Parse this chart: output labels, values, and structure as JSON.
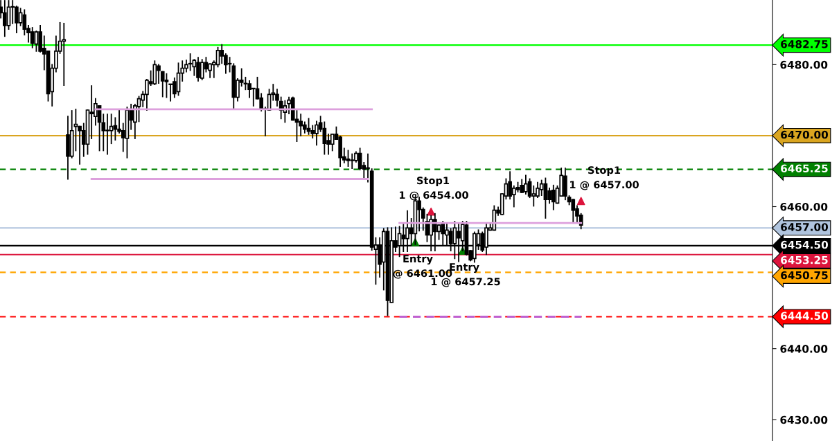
{
  "chart_data": {
    "type": "candlestick",
    "categories": [
      null,
      null,
      null,
      null,
      null,
      null,
      null,
      null,
      null,
      null,
      null,
      null,
      null,
      null,
      null,
      null,
      null,
      null,
      null,
      null,
      null,
      null,
      null,
      null,
      null,
      null,
      null,
      null,
      null,
      null,
      null,
      null,
      null,
      null,
      null,
      null,
      null,
      null,
      null,
      null,
      null,
      null,
      null,
      null,
      null,
      null,
      null,
      null,
      null,
      null,
      null,
      null,
      null,
      null,
      null,
      null,
      null,
      null,
      null,
      null,
      null,
      null,
      null,
      null,
      null,
      null,
      null,
      null,
      null,
      null,
      null,
      null,
      null,
      null,
      null,
      null,
      null,
      null,
      null,
      null,
      null,
      null,
      null,
      null,
      null,
      null,
      null,
      null,
      null,
      null,
      null,
      null,
      null,
      null,
      null,
      null,
      null,
      null,
      null,
      null,
      null,
      null,
      null,
      null,
      null,
      null,
      null,
      null,
      null,
      null,
      null,
      null,
      null,
      null,
      null,
      null,
      null,
      null,
      null,
      null,
      null,
      null,
      null,
      null,
      null,
      null,
      null,
      null,
      null,
      null,
      null,
      null,
      null,
      null,
      null,
      null,
      null,
      null,
      null,
      null,
      null,
      null,
      null,
      null,
      null,
      null,
      null,
      null,
      null,
      null,
      null,
      null,
      null,
      null,
      null,
      null,
      null,
      null,
      null,
      null,
      null,
      null,
      null,
      null,
      null,
      null,
      null,
      null,
      null,
      null,
      null,
      null,
      null,
      null,
      null,
      null,
      null,
      null,
      null,
      null,
      null,
      null,
      null,
      null,
      null,
      null,
      null,
      null,
      null,
      null,
      null,
      null,
      null,
      null,
      null,
      null
    ],
    "ohlc": [
      [
        6488.1,
        6489.0,
        6486.6,
        6487.3
      ],
      [
        6487.3,
        6489.0,
        6484.0,
        6485.5
      ],
      [
        6485.5,
        6489.0,
        6485.0,
        6488.1
      ],
      [
        6488.1,
        6489.0,
        6485.8,
        6488.1
      ],
      [
        6488.1,
        6488.2,
        6484.5,
        6485.9
      ],
      [
        6485.9,
        6487.9,
        6485.5,
        6487.3
      ],
      [
        6487.0,
        6487.7,
        6484.2,
        6485.0
      ],
      [
        6485.1,
        6485.5,
        6483.2,
        6484.5
      ],
      [
        6484.6,
        6485.2,
        6482.4,
        6483.0
      ],
      [
        6482.9,
        6484.7,
        6481.9,
        6484.6
      ],
      [
        6484.6,
        6485.5,
        6481.8,
        6481.9
      ],
      [
        6482.3,
        6484.0,
        6479.3,
        6481.5
      ],
      [
        6481.9,
        6481.9,
        6474.9,
        6475.9
      ],
      [
        6476.2,
        6480.0,
        6474.2,
        6479.5
      ],
      [
        6479.5,
        6484.0,
        6479.0,
        6481.9
      ],
      [
        6481.9,
        6485.9,
        6481.6,
        6483.3
      ],
      [
        6483.3,
        6485.8,
        6477.1,
        6483.5
      ],
      [
        6470.1,
        6472.7,
        6463.9,
        6467.1
      ],
      [
        6467.1,
        6473.5,
        6466.9,
        6470.7
      ],
      [
        6471.3,
        6473.7,
        6467.9,
        6471.6
      ],
      [
        6471.3,
        6471.3,
        6466.0,
        6470.7
      ],
      [
        6470.7,
        6471.7,
        6467.1,
        6468.8
      ],
      [
        6468.8,
        6473.6,
        6467.4,
        6473.6
      ],
      [
        6473.3,
        6477.0,
        6469.6,
        6473.1
      ],
      [
        6472.7,
        6475.2,
        6471.5,
        6474.5
      ],
      [
        6474.2,
        6474.2,
        6467.9,
        6471.9
      ],
      [
        6471.8,
        6473.0,
        6467.9,
        6470.7
      ],
      [
        6470.7,
        6473.0,
        6467.4,
        6470.7
      ],
      [
        6470.7,
        6473.0,
        6468.9,
        6471.3
      ],
      [
        6471.4,
        6472.5,
        6469.4,
        6470.9
      ],
      [
        6470.9,
        6473.7,
        6470.4,
        6470.6
      ],
      [
        6470.7,
        6471.7,
        6467.8,
        6469.7
      ],
      [
        6469.6,
        6474.0,
        6466.9,
        6473.6
      ],
      [
        6473.6,
        6474.4,
        6470.9,
        6472.2
      ],
      [
        6471.9,
        6474.4,
        6469.6,
        6474.2
      ],
      [
        6474.1,
        6475.5,
        6472.0,
        6475.2
      ],
      [
        6475.0,
        6476.2,
        6474.1,
        6475.8
      ],
      [
        6475.8,
        6477.9,
        6473.6,
        6477.8
      ],
      [
        6477.6,
        6479.1,
        6477.1,
        6477.3
      ],
      [
        6477.3,
        6480.5,
        6477.2,
        6480.0
      ],
      [
        6479.8,
        6480.0,
        6477.4,
        6479.2
      ],
      [
        6479.0,
        6479.0,
        6475.5,
        6477.7
      ],
      [
        6477.8,
        6478.7,
        6475.4,
        6477.6
      ],
      [
        6477.2,
        6477.2,
        6474.9,
        6477.2
      ],
      [
        6477.6,
        6478.1,
        6475.4,
        6475.9
      ],
      [
        6476.2,
        6480.2,
        6475.7,
        6478.8
      ],
      [
        6478.8,
        6480.5,
        6477.7,
        6479.5
      ],
      [
        6479.5,
        6480.6,
        6479.0,
        6480.0
      ],
      [
        6480.1,
        6481.5,
        6479.2,
        6480.1
      ],
      [
        6479.7,
        6480.7,
        6478.5,
        6480.6
      ],
      [
        6480.3,
        6481.0,
        6477.7,
        6478.2
      ],
      [
        6478.1,
        6480.7,
        6477.9,
        6480.3
      ],
      [
        6480.3,
        6481.0,
        6479.0,
        6479.4
      ],
      [
        6479.2,
        6480.1,
        6478.2,
        6480.1
      ],
      [
        6480.0,
        6480.5,
        6478.2,
        6480.3
      ],
      [
        6480.0,
        6482.4,
        6479.7,
        6482.0
      ],
      [
        6482.0,
        6482.8,
        6480.2,
        6481.2
      ],
      [
        6481.3,
        6481.5,
        6478.8,
        6480.0
      ],
      [
        6480.1,
        6481.0,
        6479.0,
        6480.1
      ],
      [
        6479.8,
        6480.1,
        6473.8,
        6475.4
      ],
      [
        6475.4,
        6478.0,
        6474.9,
        6477.8
      ],
      [
        6477.8,
        6479.4,
        6477.0,
        6477.5
      ],
      [
        6477.3,
        6478.2,
        6476.5,
        6477.3
      ],
      [
        6477.3,
        6477.7,
        6475.4,
        6476.5
      ],
      [
        6476.6,
        6476.6,
        6474.2,
        6476.6
      ],
      [
        6476.6,
        6478.2,
        6475.2,
        6475.2
      ],
      [
        6475.3,
        6475.9,
        6473.5,
        6473.8
      ],
      [
        6473.7,
        6474.0,
        6470.0,
        6473.7
      ],
      [
        6473.6,
        6476.5,
        6473.6,
        6475.8
      ],
      [
        6475.8,
        6477.2,
        6475.0,
        6476.0
      ],
      [
        6475.8,
        6476.5,
        6474.2,
        6475.0
      ],
      [
        6474.8,
        6475.4,
        6472.4,
        6473.6
      ],
      [
        6473.3,
        6474.9,
        6471.9,
        6474.2
      ],
      [
        6474.5,
        6475.4,
        6473.1,
        6475.0
      ],
      [
        6475.3,
        6475.4,
        6472.2,
        6472.2
      ],
      [
        6472.3,
        6473.5,
        6469.2,
        6471.9
      ],
      [
        6472.0,
        6473.0,
        6470.0,
        6471.4
      ],
      [
        6471.5,
        6471.9,
        6470.4,
        6470.9
      ],
      [
        6471.0,
        6472.4,
        6470.2,
        6470.6
      ],
      [
        6470.7,
        6471.4,
        6469.7,
        6470.3
      ],
      [
        6470.3,
        6472.0,
        6468.7,
        6471.5
      ],
      [
        6471.8,
        6472.7,
        6470.6,
        6470.9
      ],
      [
        6471.0,
        6471.9,
        6467.4,
        6468.9
      ],
      [
        6469.3,
        6470.2,
        6467.4,
        6468.8
      ],
      [
        6468.8,
        6470.2,
        6467.9,
        6470.2
      ],
      [
        6470.2,
        6471.2,
        6469.5,
        6469.5
      ],
      [
        6469.8,
        6469.9,
        6465.7,
        6466.9
      ],
      [
        6467.0,
        6468.2,
        6466.2,
        6466.6
      ],
      [
        6466.7,
        6467.9,
        6465.7,
        6466.5
      ],
      [
        6466.5,
        6467.4,
        6465.4,
        6466.5
      ],
      [
        6466.5,
        6467.7,
        6466.3,
        6467.5
      ],
      [
        6467.5,
        6468.2,
        6465.2,
        6465.4
      ],
      [
        6465.8,
        6466.2,
        6464.0,
        6465.3
      ],
      [
        6465.4,
        6467.4,
        6463.5,
        6465.4
      ],
      [
        6465.0,
        6465.3,
        6453.9,
        6454.3
      ],
      [
        6454.0,
        6455.6,
        6449.1,
        6454.6
      ],
      [
        6454.6,
        6455.6,
        6450.1,
        6451.9
      ],
      [
        6452.2,
        6456.9,
        6448.3,
        6456.5
      ],
      [
        6456.5,
        6457.0,
        6444.7,
        6446.8
      ],
      [
        6446.5,
        6457.0,
        6446.5,
        6455.2
      ],
      [
        6455.2,
        6457.1,
        6453.7,
        6454.3
      ],
      [
        6454.5,
        6457.2,
        6453.0,
        6456.2
      ],
      [
        6456.0,
        6457.5,
        6453.7,
        6455.5
      ],
      [
        6455.5,
        6459.4,
        6453.7,
        6457.0
      ],
      [
        6457.0,
        6458.3,
        6454.6,
        6456.2
      ],
      [
        6456.2,
        6461.3,
        6454.7,
        6460.8
      ],
      [
        6460.8,
        6461.3,
        6456.6,
        6459.6
      ],
      [
        6459.6,
        6459.8,
        6456.7,
        6458.4
      ],
      [
        6457.9,
        6458.9,
        6455.1,
        6456.0
      ],
      [
        6456.0,
        6458.7,
        6453.8,
        6458.2
      ],
      [
        6458.2,
        6459.0,
        6453.8,
        6456.5
      ],
      [
        6456.5,
        6457.4,
        6455.4,
        6457.4
      ],
      [
        6457.7,
        6457.9,
        6454.6,
        6456.2
      ],
      [
        6456.0,
        6457.6,
        6454.5,
        6456.7
      ],
      [
        6456.5,
        6456.9,
        6453.8,
        6454.8
      ],
      [
        6454.8,
        6457.9,
        6452.7,
        6457.0
      ],
      [
        6456.5,
        6457.6,
        6452.3,
        6455.6
      ],
      [
        6455.2,
        6457.9,
        6453.8,
        6457.5
      ],
      [
        6457.4,
        6457.9,
        6453.2,
        6453.3
      ],
      [
        6453.8,
        6453.8,
        6452.4,
        6452.5
      ],
      [
        6452.7,
        6456.4,
        6452.2,
        6456.2
      ],
      [
        6454.7,
        6456.7,
        6454.0,
        6456.2
      ],
      [
        6456.2,
        6456.4,
        6453.7,
        6453.9
      ],
      [
        6454.3,
        6457.6,
        6453.3,
        6457.0
      ],
      [
        6456.7,
        6457.6,
        6456.7,
        6457.0
      ],
      [
        6456.7,
        6460.1,
        6456.7,
        6459.5
      ],
      [
        6459.5,
        6459.9,
        6458.8,
        6459.1
      ],
      [
        6458.9,
        6461.8,
        6458.9,
        6461.8
      ],
      [
        6461.5,
        6463.9,
        6461.1,
        6463.2
      ],
      [
        6463.5,
        6464.9,
        6461.1,
        6461.5
      ],
      [
        6461.7,
        6462.9,
        6460.0,
        6462.6
      ],
      [
        6462.7,
        6463.4,
        6462.1,
        6462.4
      ],
      [
        6463.0,
        6463.8,
        6462.0,
        6462.0
      ],
      [
        6462.1,
        6464.4,
        6461.8,
        6463.2
      ],
      [
        6463.5,
        6463.9,
        6461.3,
        6461.5
      ],
      [
        6461.5,
        6462.9,
        6460.1,
        6461.8
      ],
      [
        6461.5,
        6463.4,
        6461.3,
        6462.6
      ],
      [
        6462.4,
        6463.7,
        6461.6,
        6463.2
      ],
      [
        6463.2,
        6464.0,
        6458.4,
        6461.0
      ],
      [
        6462.2,
        6462.6,
        6460.5,
        6461.0
      ],
      [
        6462.3,
        6463.0,
        6459.6,
        6460.7
      ],
      [
        6460.5,
        6462.9,
        6460.5,
        6462.6
      ],
      [
        6461.5,
        6465.4,
        6461.5,
        6464.4
      ],
      [
        6464.3,
        6465.4,
        6461.0,
        6461.5
      ],
      [
        6461.3,
        6461.5,
        6460.3,
        6460.7
      ],
      [
        6461.0,
        6461.0,
        6457.9,
        6459.5
      ],
      [
        6459.7,
        6460.1,
        6457.9,
        6458.7
      ],
      [
        6458.8,
        6459.0,
        6456.9,
        6457.4
      ],
      null,
      null,
      null,
      null,
      null,
      null,
      null,
      null,
      null,
      null,
      null,
      null,
      null,
      null,
      null,
      null,
      null,
      null,
      null,
      null,
      null,
      null,
      null,
      null,
      null,
      null,
      null,
      null,
      null,
      null,
      null,
      null,
      null,
      null,
      null,
      null,
      null,
      null,
      null,
      null,
      null,
      null,
      null,
      null,
      null,
      null,
      null,
      null
    ],
    "series": [
      {
        "type": "line",
        "color": "#dda0dd",
        "line_style": "solid",
        "values": [
          null,
          null,
          null,
          null,
          null,
          null,
          null,
          null,
          null,
          null,
          null,
          null,
          null,
          null,
          null,
          null,
          null,
          null,
          null,
          null,
          null,
          null,
          null,
          null,
          6473.7,
          6473.7,
          6473.7,
          6473.7,
          6473.7,
          6473.7,
          6473.7,
          6473.7,
          6473.7,
          6473.7,
          6473.7,
          6473.7,
          6473.7,
          6473.7,
          6473.7,
          6473.7,
          6473.7,
          6473.7,
          6473.7,
          6473.7,
          6473.7,
          6473.7,
          6473.7,
          6473.7,
          6473.7,
          6473.7,
          6473.7,
          6473.7,
          6473.7,
          6473.7,
          6473.7,
          6473.7,
          6473.7,
          6473.7,
          6473.7,
          6473.7,
          6473.7,
          6473.7,
          6473.7,
          6473.7,
          6473.7,
          6473.7,
          6473.7,
          6473.7,
          6473.7,
          6473.7,
          6473.7,
          6473.7,
          6473.7,
          6473.7,
          6473.7,
          6473.7,
          6473.7,
          6473.7,
          6473.7,
          6473.7,
          6473.7,
          6473.7,
          6473.7,
          6473.7,
          6473.7,
          6473.7,
          6473.7,
          6473.7,
          6473.7,
          6473.7,
          6473.7,
          6473.7,
          6473.7,
          6473.7,
          6473.7,
          null,
          null,
          null,
          null,
          null,
          null,
          null,
          null,
          null,
          null,
          null,
          null,
          null,
          null,
          null,
          null,
          null,
          null,
          null,
          null,
          null,
          null,
          null,
          null,
          null,
          null,
          null,
          null,
          null,
          null,
          null,
          null,
          null,
          null,
          null,
          null,
          null,
          null,
          null,
          null,
          null,
          null,
          null,
          null,
          null,
          null,
          null,
          null,
          null,
          null,
          null,
          null,
          null,
          null,
          null,
          null,
          null,
          null,
          null,
          null,
          null,
          null,
          null,
          null,
          null,
          null,
          null,
          null,
          null,
          null,
          null,
          null,
          null,
          null,
          null,
          null,
          null,
          null,
          null,
          null,
          null,
          null,
          null,
          null,
          null,
          null,
          null,
          null,
          null,
          null,
          null,
          null,
          null,
          null,
          null,
          null,
          null,
          null,
          null,
          null,
          null
        ]
      },
      {
        "type": "line",
        "color": "#dda0dd",
        "line_style": "solid",
        "values": [
          null,
          null,
          null,
          null,
          null,
          null,
          null,
          null,
          null,
          null,
          null,
          null,
          null,
          null,
          null,
          null,
          null,
          null,
          null,
          null,
          null,
          null,
          null,
          6463.9,
          6463.9,
          6463.9,
          6463.9,
          6463.9,
          6463.9,
          6463.9,
          6463.9,
          6463.9,
          6463.9,
          6463.9,
          6463.9,
          6463.9,
          6463.9,
          6463.9,
          6463.9,
          6463.9,
          6463.9,
          6463.9,
          6463.9,
          6463.9,
          6463.9,
          6463.9,
          6463.9,
          6463.9,
          6463.9,
          6463.9,
          6463.9,
          6463.9,
          6463.9,
          6463.9,
          6463.9,
          6463.9,
          6463.9,
          6463.9,
          6463.9,
          6463.9,
          6463.9,
          6463.9,
          6463.9,
          6463.9,
          6463.9,
          6463.9,
          6463.9,
          6463.9,
          6463.9,
          6463.9,
          6463.9,
          6463.9,
          6463.9,
          6463.9,
          6463.9,
          6463.9,
          6463.9,
          6463.9,
          6463.9,
          6463.9,
          6463.9,
          6463.9,
          6463.9,
          6463.9,
          6463.9,
          6463.9,
          6463.9,
          6463.9,
          6463.9,
          6463.9,
          6463.9,
          6463.9,
          6463.9,
          6463.9,
          null,
          null,
          null,
          null,
          null,
          null,
          null,
          null,
          null,
          null,
          null,
          null,
          null,
          null,
          null,
          null,
          null,
          null,
          null,
          null,
          null,
          null,
          null,
          null,
          null,
          null,
          null,
          null,
          null,
          null,
          null,
          null,
          null,
          null,
          null,
          null,
          null,
          null,
          null,
          null,
          null,
          null,
          null,
          null,
          null,
          null,
          null,
          null,
          null,
          null,
          null,
          null,
          null,
          null,
          null,
          null,
          null,
          null,
          null,
          null,
          null,
          null,
          null,
          null,
          null,
          null,
          null,
          null,
          null,
          null,
          null,
          null,
          null,
          null,
          null,
          null,
          null,
          null,
          null,
          null,
          null,
          null,
          null,
          null,
          null,
          null,
          null,
          null,
          null,
          null,
          null,
          null,
          null,
          null,
          null,
          null,
          null,
          null,
          null,
          null,
          null,
          null
        ]
      },
      {
        "type": "line",
        "color": "#dda0dd",
        "line_style": "solid",
        "values": [
          null,
          null,
          null,
          null,
          null,
          null,
          null,
          null,
          null,
          null,
          null,
          null,
          null,
          null,
          null,
          null,
          null,
          null,
          null,
          null,
          null,
          null,
          null,
          null,
          null,
          null,
          null,
          null,
          null,
          null,
          null,
          null,
          null,
          null,
          null,
          null,
          null,
          null,
          null,
          null,
          null,
          null,
          null,
          null,
          null,
          null,
          null,
          null,
          null,
          null,
          null,
          null,
          null,
          null,
          null,
          null,
          null,
          null,
          null,
          null,
          null,
          null,
          null,
          null,
          null,
          null,
          null,
          null,
          null,
          null,
          null,
          null,
          null,
          null,
          null,
          null,
          null,
          null,
          null,
          null,
          null,
          null,
          null,
          null,
          null,
          null,
          null,
          null,
          null,
          null,
          null,
          null,
          null,
          null,
          null,
          null,
          null,
          null,
          null,
          null,
          null,
          6457.7,
          6457.7,
          6457.7,
          6457.7,
          6457.7,
          6457.7,
          6457.7,
          6457.7,
          6457.7,
          6457.7,
          6457.7,
          6457.7,
          6457.7,
          6457.7,
          6457.7,
          6457.7,
          6457.7,
          6457.7,
          6457.7,
          6457.7,
          6457.7,
          6457.7,
          6457.7,
          6457.7,
          6457.7,
          6457.7,
          6457.7,
          6457.7,
          6457.7,
          6457.7,
          6457.7,
          6457.7,
          6457.7,
          6457.7,
          6457.7,
          6457.7,
          6457.7,
          6457.7,
          6457.7,
          6457.7,
          6457.7,
          6457.7,
          6457.7,
          6457.7,
          6457.7,
          6457.7,
          6457.7,
          null,
          null,
          null,
          null,
          null,
          null,
          null,
          null,
          null,
          null,
          null,
          null,
          null,
          null,
          null,
          null,
          null,
          null,
          null,
          null,
          null,
          null,
          null,
          null,
          null,
          null,
          null,
          null,
          null,
          null,
          null,
          null,
          null,
          null,
          null,
          null,
          null,
          null,
          null,
          null,
          null,
          null,
          null,
          null,
          null,
          null,
          null,
          null
        ]
      },
      {
        "type": "line",
        "color": "#c060d0",
        "line_style": "dashed",
        "values": [
          null,
          null,
          null,
          null,
          null,
          null,
          null,
          null,
          null,
          null,
          null,
          null,
          null,
          null,
          null,
          null,
          null,
          null,
          null,
          null,
          null,
          null,
          null,
          null,
          null,
          null,
          null,
          null,
          null,
          null,
          null,
          null,
          null,
          null,
          null,
          null,
          null,
          null,
          null,
          null,
          null,
          null,
          null,
          null,
          null,
          null,
          null,
          null,
          null,
          null,
          null,
          null,
          null,
          null,
          null,
          null,
          null,
          null,
          null,
          null,
          null,
          null,
          null,
          null,
          null,
          null,
          null,
          null,
          null,
          null,
          null,
          null,
          null,
          null,
          null,
          null,
          null,
          null,
          null,
          null,
          null,
          null,
          null,
          null,
          null,
          null,
          null,
          null,
          null,
          null,
          null,
          null,
          null,
          null,
          null,
          null,
          null,
          null,
          null,
          null,
          null,
          6444.5,
          6444.5,
          6444.5,
          6444.5,
          6444.5,
          6444.5,
          6444.5,
          6444.5,
          6444.5,
          6444.5,
          6444.5,
          6444.5,
          6444.5,
          6444.5,
          6444.5,
          6444.5,
          6444.5,
          6444.5,
          6444.5,
          6444.5,
          6444.5,
          6444.5,
          6444.5,
          6444.5,
          6444.5,
          6444.5,
          6444.5,
          6444.5,
          6444.5,
          6444.5,
          6444.5,
          6444.5,
          6444.5,
          6444.5,
          6444.5,
          6444.5,
          6444.5,
          6444.5,
          6444.5,
          6444.5,
          6444.5,
          6444.5,
          6444.5,
          6444.5,
          6444.5,
          6444.5,
          6444.5,
          null,
          null,
          null,
          null,
          null,
          null,
          null,
          null,
          null,
          null,
          null,
          null,
          null,
          null,
          null,
          null,
          null,
          null,
          null,
          null,
          null,
          null,
          null,
          null,
          null,
          null,
          null,
          null,
          null,
          null,
          null,
          null,
          null,
          null,
          null,
          null,
          null,
          null,
          null,
          null,
          null,
          null,
          null,
          null,
          null,
          null,
          null,
          null
        ]
      },
      {
        "type": "scatter",
        "color": "#008000",
        "marker": "triangle",
        "values": [
          null,
          null,
          null,
          null,
          null,
          null,
          null,
          null,
          null,
          null,
          null,
          null,
          null,
          null,
          null,
          null,
          null,
          null,
          null,
          null,
          null,
          null,
          null,
          null,
          null,
          null,
          null,
          null,
          null,
          null,
          null,
          null,
          null,
          null,
          null,
          null,
          null,
          null,
          null,
          null,
          null,
          null,
          null,
          null,
          null,
          null,
          null,
          null,
          null,
          null,
          null,
          null,
          null,
          null,
          null,
          null,
          null,
          null,
          null,
          null,
          null,
          null,
          null,
          null,
          null,
          null,
          null,
          null,
          null,
          null,
          null,
          null,
          null,
          null,
          null,
          null,
          null,
          null,
          null,
          null,
          null,
          null,
          null,
          null,
          null,
          null,
          null,
          null,
          null,
          null,
          null,
          null,
          null,
          null,
          null,
          null,
          null,
          null,
          null,
          null,
          null,
          null,
          null,
          null,
          null,
          6455.0,
          null,
          null,
          null,
          null,
          null,
          null,
          null,
          null,
          null,
          null,
          null,
          6453.8,
          null,
          null,
          null,
          null,
          null,
          null,
          null,
          null,
          null,
          null,
          null,
          null,
          null,
          null,
          null,
          null,
          null,
          null,
          null,
          null,
          null,
          null,
          null,
          null,
          null,
          null,
          null,
          null,
          null,
          null,
          null,
          null,
          null,
          null,
          null,
          null,
          null,
          null,
          null,
          null,
          null,
          null,
          null,
          null,
          null,
          null,
          null,
          null,
          null,
          null,
          null,
          null,
          null,
          null,
          null,
          null,
          null,
          null,
          null,
          null,
          null,
          null,
          null,
          null,
          null,
          null,
          null,
          null,
          null,
          null,
          null,
          null,
          null,
          null,
          null,
          null,
          null,
          null
        ]
      },
      {
        "type": "scatter",
        "color": "#dc143c",
        "marker": "triangle",
        "values": [
          null,
          null,
          null,
          null,
          null,
          null,
          null,
          null,
          null,
          null,
          null,
          null,
          null,
          null,
          null,
          null,
          null,
          null,
          null,
          null,
          null,
          null,
          null,
          null,
          null,
          null,
          null,
          null,
          null,
          null,
          null,
          null,
          null,
          null,
          null,
          null,
          null,
          null,
          null,
          null,
          null,
          null,
          null,
          null,
          null,
          null,
          null,
          null,
          null,
          null,
          null,
          null,
          null,
          null,
          null,
          null,
          null,
          null,
          null,
          null,
          null,
          null,
          null,
          null,
          null,
          null,
          null,
          null,
          null,
          null,
          null,
          null,
          null,
          null,
          null,
          null,
          null,
          null,
          null,
          null,
          null,
          null,
          null,
          null,
          null,
          null,
          null,
          null,
          null,
          null,
          null,
          null,
          null,
          null,
          null,
          null,
          null,
          null,
          null,
          null,
          null,
          null,
          null,
          null,
          null,
          null,
          null,
          null,
          null,
          6459.3,
          null,
          null,
          null,
          null,
          null,
          null,
          null,
          null,
          null,
          null,
          null,
          null,
          null,
          null,
          null,
          null,
          null,
          null,
          null,
          null,
          null,
          null,
          null,
          null,
          null,
          null,
          null,
          null,
          null,
          null,
          null,
          null,
          null,
          null,
          null,
          null,
          null,
          6460.8,
          null,
          null,
          null,
          null,
          null,
          null,
          null,
          null,
          null,
          null,
          null,
          null,
          null,
          null,
          null,
          null,
          null,
          null,
          null,
          null,
          null,
          null,
          null,
          null,
          null,
          null,
          null,
          null,
          null,
          null,
          null,
          null,
          null,
          null,
          null,
          null,
          null,
          null,
          null,
          null,
          null,
          null,
          null,
          null,
          null,
          null,
          null,
          null
        ]
      }
    ],
    "ref_lines": [
      {
        "axis": "y",
        "value": 6482.75,
        "label": "6482.75",
        "color": "#00ff00",
        "line_style": "solid"
      },
      {
        "axis": "y",
        "value": 6470.0,
        "label": "6470.00",
        "color": "#daa520",
        "line_style": "solid"
      },
      {
        "axis": "y",
        "value": 6465.25,
        "label": "6465.25",
        "color": "#008000",
        "line_style": "dashed"
      },
      {
        "axis": "y",
        "value": 6457.0,
        "label": "6457.00",
        "color": "#b0c4de",
        "line_style": "solid"
      },
      {
        "axis": "y",
        "value": 6454.5,
        "label": "6454.50",
        "color": "#000000",
        "line_style": "solid"
      },
      {
        "axis": "y",
        "value": 6453.25,
        "label": "6453.25",
        "color": "#dc143c",
        "line_style": "solid"
      },
      {
        "axis": "y",
        "value": 6450.75,
        "label": "6450.75",
        "color": "#ffa500",
        "line_style": "dashed"
      },
      {
        "axis": "y",
        "value": 6444.5,
        "label": "6444.50",
        "color": "#ff0000",
        "line_style": "dashed"
      }
    ],
    "annotations": [
      "Stop1",
      "1 @ 6454.00",
      "Entry",
      "@ 6461.00",
      "Entry",
      "1 @ 6457.25",
      "Stop1",
      "1 @ 6457.00"
    ],
    "ylim": [
      6427.0,
      6489.1
    ],
    "yticks": [
      {
        "value": 6430,
        "label": "6430.00"
      },
      {
        "value": 6440,
        "label": "6440.00"
      },
      {
        "value": 6460,
        "label": "6460.00"
      },
      {
        "value": 6480,
        "label": "6480.00"
      }
    ],
    "tick_labels": "y",
    "grid": false,
    "legend": false
  }
}
